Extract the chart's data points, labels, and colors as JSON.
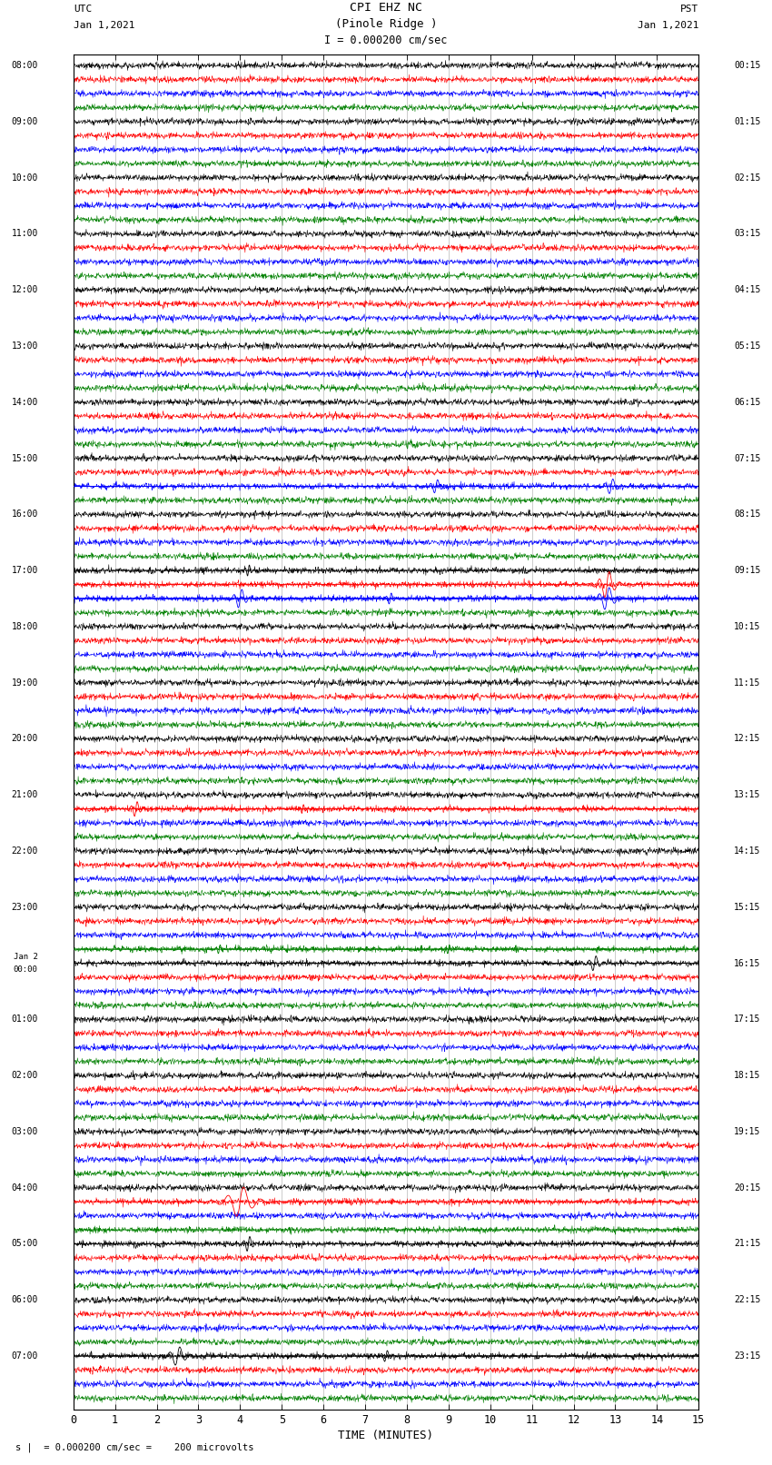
{
  "title_line1": "CPI EHZ NC",
  "title_line2": "(Pinole Ridge )",
  "scale_text": "I = 0.000200 cm/sec",
  "utc_label": "UTC",
  "utc_date": "Jan 1,2021",
  "pst_label": "PST",
  "pst_date": "Jan 1,2021",
  "xlabel": "TIME (MINUTES)",
  "bottom_note": "s |  = 0.000200 cm/sec =    200 microvolts",
  "xlim": [
    0,
    15
  ],
  "background_color": "#ffffff",
  "trace_colors": [
    "black",
    "red",
    "blue",
    "green"
  ],
  "grid_color": "#888888",
  "utc_hours": [
    "08:00",
    "09:00",
    "10:00",
    "11:00",
    "12:00",
    "13:00",
    "14:00",
    "15:00",
    "16:00",
    "17:00",
    "18:00",
    "19:00",
    "20:00",
    "21:00",
    "22:00",
    "23:00",
    "Jan 2\n00:00",
    "01:00",
    "02:00",
    "03:00",
    "04:00",
    "05:00",
    "06:00",
    "07:00"
  ],
  "pst_hours": [
    "00:15",
    "01:15",
    "02:15",
    "03:15",
    "04:15",
    "05:15",
    "06:15",
    "07:15",
    "08:15",
    "09:15",
    "10:15",
    "11:15",
    "12:15",
    "13:15",
    "14:15",
    "15:15",
    "16:15",
    "17:15",
    "18:15",
    "19:15",
    "20:15",
    "21:15",
    "22:15",
    "23:15"
  ],
  "n_hours": 24,
  "traces_per_hour": 4,
  "noise_seed": 42,
  "noise_amp": 0.28,
  "trace_scale": 0.38,
  "lw_trace": 0.4,
  "events": [
    {
      "hour": 9,
      "trace": 2,
      "x": 4.0,
      "amp": 2.5,
      "dur": 0.4,
      "color": "blue"
    },
    {
      "hour": 9,
      "trace": 2,
      "x": 7.6,
      "amp": 1.5,
      "dur": 0.25,
      "color": "blue"
    },
    {
      "hour": 9,
      "trace": 2,
      "x": 12.8,
      "amp": 3.0,
      "dur": 0.5,
      "color": "blue"
    },
    {
      "hour": 9,
      "trace": 0,
      "x": 4.2,
      "amp": 1.5,
      "dur": 0.2,
      "color": "black"
    },
    {
      "hour": 9,
      "trace": 1,
      "x": 12.8,
      "amp": 3.5,
      "dur": 0.5,
      "color": "red"
    },
    {
      "hour": 7,
      "trace": 2,
      "x": 8.7,
      "amp": 1.8,
      "dur": 0.35,
      "color": "blue"
    },
    {
      "hour": 7,
      "trace": 2,
      "x": 12.9,
      "amp": 2.0,
      "dur": 0.4,
      "color": "blue"
    },
    {
      "hour": 13,
      "trace": 1,
      "x": 1.5,
      "amp": 2.0,
      "dur": 0.3,
      "color": "red"
    },
    {
      "hour": 13,
      "trace": 1,
      "x": 5.5,
      "amp": 1.2,
      "dur": 0.2,
      "color": "red"
    },
    {
      "hour": 15,
      "trace": 3,
      "x": 3.5,
      "amp": 1.2,
      "dur": 0.2,
      "color": "green"
    },
    {
      "hour": 15,
      "trace": 3,
      "x": 9.0,
      "amp": 1.2,
      "dur": 0.2,
      "color": "green"
    },
    {
      "hour": 20,
      "trace": 1,
      "x": 4.0,
      "amp": 4.0,
      "dur": 0.8,
      "color": "red"
    },
    {
      "hour": 20,
      "trace": 3,
      "x": 2.0,
      "amp": 0.8,
      "dur": 0.15,
      "color": "green"
    },
    {
      "hour": 21,
      "trace": 0,
      "x": 4.2,
      "amp": 2.0,
      "dur": 0.3,
      "color": "black"
    },
    {
      "hour": 23,
      "trace": 0,
      "x": 2.5,
      "amp": 2.5,
      "dur": 0.5,
      "color": "black"
    },
    {
      "hour": 23,
      "trace": 0,
      "x": 7.5,
      "amp": 1.5,
      "dur": 0.3,
      "color": "black"
    },
    {
      "hour": 16,
      "trace": 0,
      "x": 12.5,
      "amp": 2.0,
      "dur": 0.35,
      "color": "black"
    }
  ]
}
